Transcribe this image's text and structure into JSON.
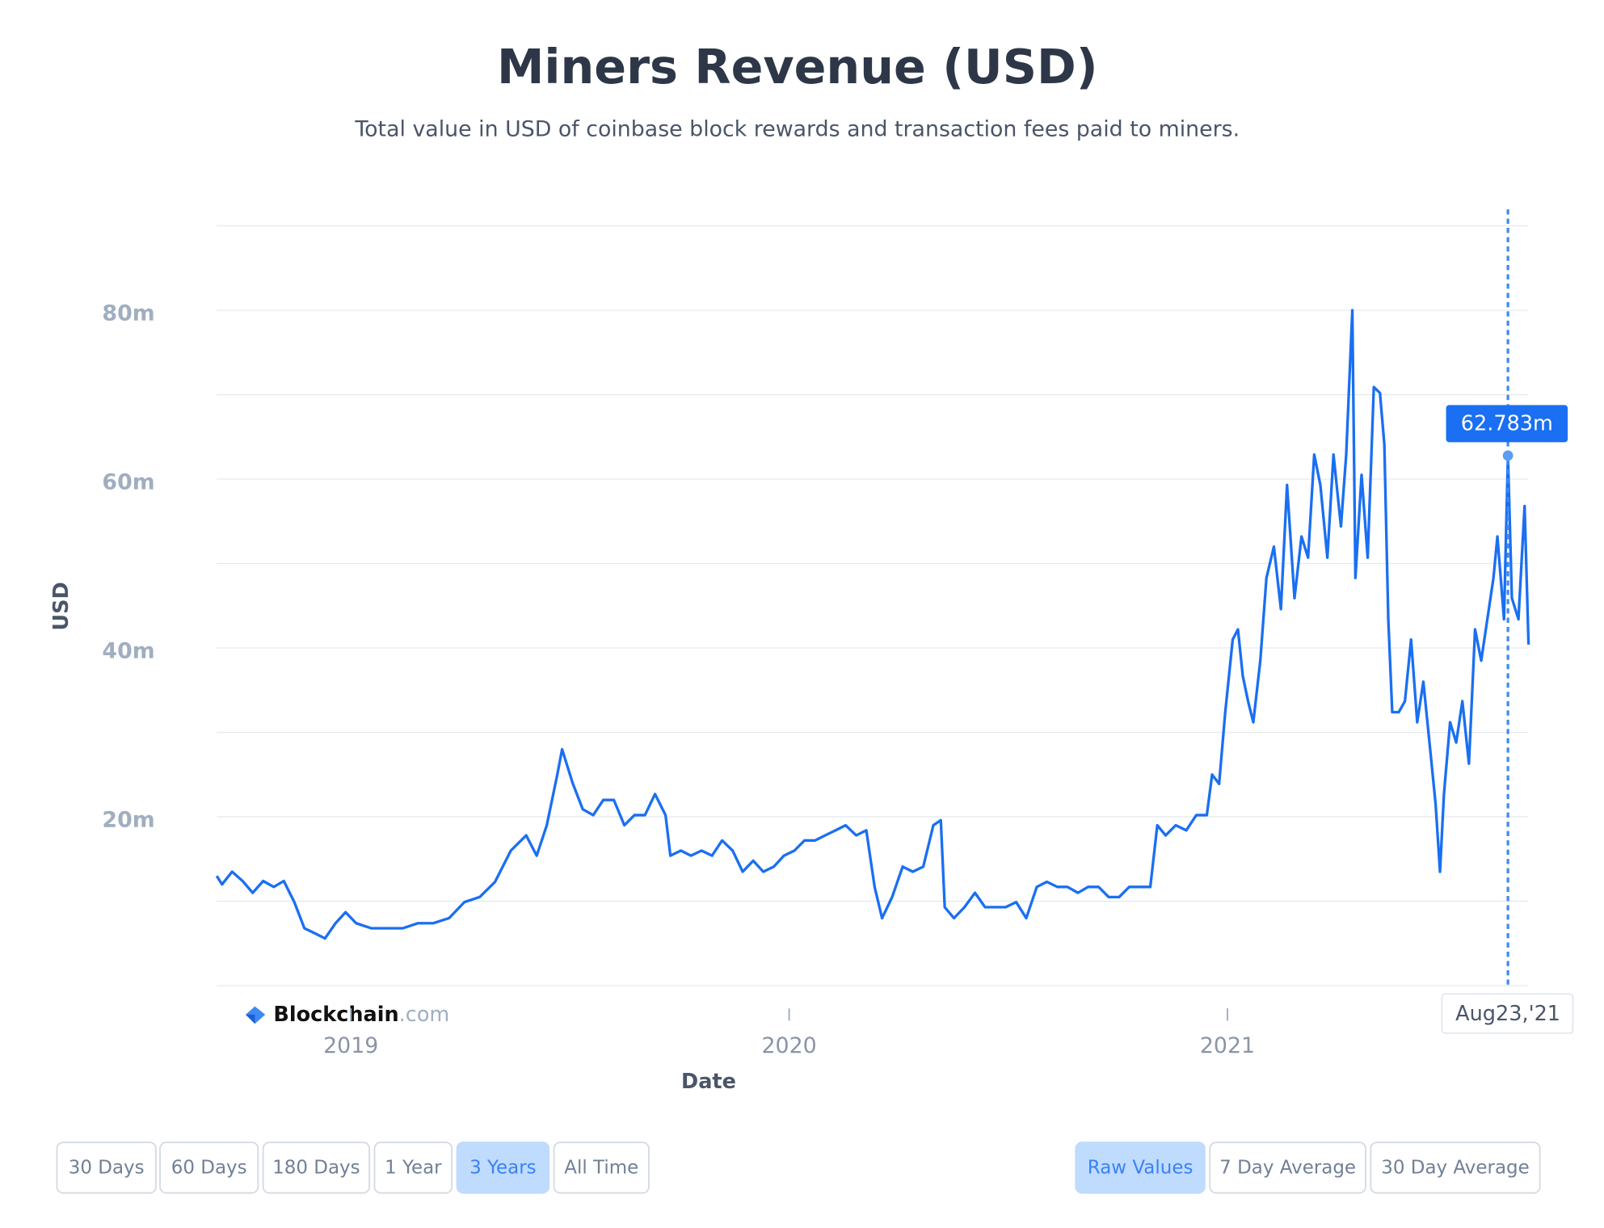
{
  "chart_data": {
    "type": "line",
    "title": "Miners Revenue (USD)",
    "subtitle": "Total value in USD of coinbase block rewards and transaction fees paid to miners.",
    "y_label": "USD",
    "x_label": "Date",
    "color": "#1a6ff2",
    "grid": true,
    "xlim": [
      2018.694,
      2021.687
    ],
    "xticks": [
      2019,
      2020,
      2021
    ],
    "ylim": [
      0,
      90
    ],
    "yticks": [
      {
        "value": 0,
        "label": null
      },
      {
        "value": 10,
        "label": null
      },
      {
        "value": 20,
        "label": "20m"
      },
      {
        "value": 30,
        "label": null
      },
      {
        "value": 40,
        "label": "40m"
      },
      {
        "value": 50,
        "label": null
      },
      {
        "value": 60,
        "label": "60m"
      },
      {
        "value": 70,
        "label": null
      },
      {
        "value": 80,
        "label": "80m"
      },
      {
        "value": 90,
        "label": null
      }
    ],
    "x": [
      2018.694,
      2018.706,
      2018.729,
      2018.753,
      2018.776,
      2018.8,
      2018.824,
      2018.847,
      2018.871,
      2018.894,
      2018.918,
      2018.941,
      2018.965,
      2018.988,
      2019.012,
      2019.047,
      2019.082,
      2019.118,
      2019.153,
      2019.188,
      2019.224,
      2019.259,
      2019.294,
      2019.329,
      2019.365,
      2019.4,
      2019.424,
      2019.447,
      2019.471,
      2019.482,
      2019.506,
      2019.529,
      2019.553,
      2019.576,
      2019.6,
      2019.624,
      2019.647,
      2019.671,
      2019.694,
      2019.718,
      2019.729,
      2019.753,
      2019.776,
      2019.8,
      2019.824,
      2019.847,
      2019.871,
      2019.894,
      2019.918,
      2019.941,
      2019.965,
      2019.988,
      2020.012,
      2020.035,
      2020.059,
      2020.082,
      2020.106,
      2020.129,
      2020.153,
      2020.176,
      2020.195,
      2020.212,
      2020.235,
      2020.259,
      2020.282,
      2020.306,
      2020.329,
      2020.346,
      2020.355,
      2020.376,
      2020.4,
      2020.424,
      2020.447,
      2020.471,
      2020.494,
      2020.518,
      2020.541,
      2020.565,
      2020.588,
      2020.612,
      2020.635,
      2020.659,
      2020.682,
      2020.706,
      2020.729,
      2020.753,
      2020.776,
      2020.8,
      2020.824,
      2020.84,
      2020.859,
      2020.882,
      2020.906,
      2020.929,
      2020.953,
      2020.965,
      2020.981,
      2020.995,
      2021.012,
      2021.024,
      2021.035,
      2021.047,
      2021.059,
      2021.075,
      2021.089,
      2021.106,
      2021.122,
      2021.136,
      2021.153,
      2021.169,
      2021.184,
      2021.198,
      2021.212,
      2021.228,
      2021.242,
      2021.259,
      2021.271,
      2021.285,
      2021.292,
      2021.306,
      2021.32,
      2021.334,
      2021.348,
      2021.358,
      2021.367,
      2021.376,
      2021.391,
      2021.405,
      2021.419,
      2021.433,
      2021.447,
      2021.461,
      2021.475,
      2021.485,
      2021.494,
      2021.508,
      2021.522,
      2021.536,
      2021.551,
      2021.565,
      2021.579,
      2021.593,
      2021.607,
      2021.616,
      2021.631,
      2021.64,
      2021.649,
      2021.664,
      2021.678,
      2021.687
    ],
    "values": [
      13,
      12,
      13.5,
      12.4,
      11,
      12.4,
      11.7,
      12.4,
      9.9,
      6.8,
      6.2,
      5.6,
      7.4,
      8.7,
      7.4,
      6.8,
      6.8,
      6.8,
      7.4,
      7.4,
      8,
      9.9,
      10.5,
      12.3,
      16,
      17.8,
      15.4,
      19,
      25,
      28,
      24,
      20.9,
      20.2,
      22,
      22,
      19,
      20.2,
      20.2,
      22.7,
      20.2,
      15.4,
      16,
      15.4,
      16,
      15.4,
      17.2,
      16,
      13.5,
      14.8,
      13.5,
      14.1,
      15.4,
      16,
      17.2,
      17.2,
      17.8,
      18.4,
      19,
      17.8,
      18.4,
      11.7,
      8,
      10.5,
      14.1,
      13.5,
      14.1,
      19,
      19.6,
      9.3,
      8,
      9.3,
      11,
      9.3,
      9.3,
      9.3,
      9.9,
      8,
      11.7,
      12.3,
      11.7,
      11.7,
      11,
      11.7,
      11.7,
      10.5,
      10.5,
      11.7,
      11.7,
      11.7,
      19,
      17.8,
      19,
      18.4,
      20.2,
      20.2,
      25,
      23.9,
      32.4,
      41,
      42.2,
      36.7,
      33.7,
      31.2,
      38.5,
      48.3,
      52,
      44.6,
      59.3,
      45.9,
      53.2,
      50.7,
      62.9,
      59.3,
      50.7,
      62.9,
      54.4,
      62.9,
      80,
      48.3,
      60.5,
      50.7,
      70.9,
      70.2,
      64.1,
      43.4,
      32.4,
      32.4,
      33.7,
      41,
      31.2,
      36,
      28.8,
      21.5,
      13.5,
      22.7,
      31.2,
      28.8,
      33.7,
      26.3,
      42.2,
      38.5,
      43.4,
      48.3,
      53.2,
      43.4,
      62.783,
      45.9,
      43.4,
      56.8,
      40.4
    ],
    "tooltip": {
      "x": 2021.64,
      "x_label": "Aug23,'21",
      "value": 62.783,
      "label": "62.783m"
    },
    "brand": {
      "name": "Blockchain",
      "suffix": ".com"
    }
  },
  "range_buttons": {
    "labels": [
      "30 Days",
      "60 Days",
      "180 Days",
      "1 Year",
      "3 Years",
      "All Time"
    ],
    "active": 4
  },
  "average_buttons": {
    "labels": [
      "Raw Values",
      "7 Day Average",
      "30 Day Average"
    ],
    "active": 0
  }
}
